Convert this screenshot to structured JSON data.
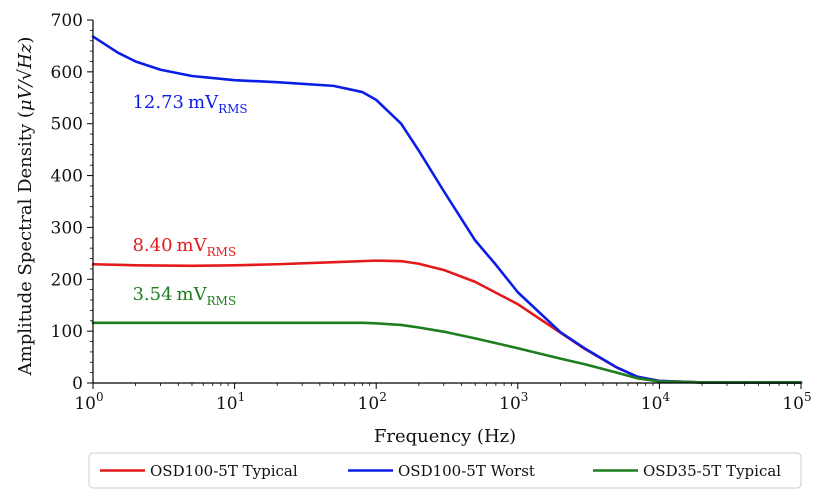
{
  "chart_data": {
    "type": "line",
    "title": "",
    "xlabel": "Frequency (Hz)",
    "ylabel_prefix": "Amplitude Spectral Density (",
    "ylabel_unit": "μV/√Hz",
    "ylabel_suffix": ")",
    "xscale": "log",
    "xlim": [
      1,
      100000
    ],
    "ylim": [
      0,
      700
    ],
    "x_ticks": [
      {
        "value": 1,
        "base": "10",
        "exp": "0"
      },
      {
        "value": 10,
        "base": "10",
        "exp": "1"
      },
      {
        "value": 100,
        "base": "10",
        "exp": "2"
      },
      {
        "value": 1000,
        "base": "10",
        "exp": "3"
      },
      {
        "value": 10000,
        "base": "10",
        "exp": "4"
      },
      {
        "value": 100000,
        "base": "10",
        "exp": "5"
      }
    ],
    "y_ticks": [
      0,
      100,
      200,
      300,
      400,
      500,
      600,
      700
    ],
    "y_tick_labels": [
      "0",
      "100",
      "200",
      "300",
      "400",
      "500",
      "600",
      "700"
    ],
    "series": [
      {
        "name": "OSD100-5T Typical",
        "color": "#e31a1c",
        "x": [
          1,
          2,
          5,
          10,
          20,
          50,
          100,
          150,
          200,
          300,
          500,
          1000,
          2000,
          3000,
          5000,
          7000,
          10000,
          20000,
          100000
        ],
        "values": [
          229,
          227,
          226,
          227,
          229,
          233,
          236,
          235,
          230,
          218,
          195,
          152,
          97,
          65,
          30,
          12,
          4,
          1,
          1
        ]
      },
      {
        "name": "OSD100-5T Worst",
        "color": "#0b1ee8",
        "x": [
          1,
          1.5,
          2,
          3,
          5,
          10,
          20,
          50,
          80,
          100,
          150,
          200,
          300,
          500,
          700,
          1000,
          2000,
          3000,
          5000,
          7000,
          10000,
          20000,
          100000
        ],
        "values": [
          668,
          637,
          620,
          604,
          592,
          584,
          580,
          573,
          561,
          546,
          500,
          448,
          370,
          275,
          228,
          175,
          98,
          66,
          30,
          12,
          4,
          1,
          1
        ]
      },
      {
        "name": "OSD35-5T Typical",
        "color": "#1e7d1e",
        "x": [
          1,
          10,
          50,
          80,
          100,
          150,
          200,
          300,
          500,
          1000,
          2000,
          3000,
          5000,
          7000,
          10000,
          20000,
          100000
        ],
        "values": [
          116,
          116,
          116,
          116,
          115,
          112,
          107,
          99,
          86,
          67,
          47,
          36,
          20,
          9,
          3,
          1,
          1
        ]
      }
    ],
    "annotations": [
      {
        "value": "12.73",
        "unit": "mV",
        "sub": "RMS",
        "color": "#0b1ee8",
        "at_x": 1.9,
        "at_y": 530
      },
      {
        "value": "8.40",
        "unit": "mV",
        "sub": "RMS",
        "color": "#e31a1c",
        "at_x": 1.9,
        "at_y": 255
      },
      {
        "value": "3.54",
        "unit": "mV",
        "sub": "RMS",
        "color": "#1e7d1e",
        "at_x": 1.9,
        "at_y": 160
      }
    ],
    "legend": {
      "placement": "bottom",
      "entries": [
        "OSD100-5T Typical",
        "OSD100-5T Worst",
        "OSD35-5T Typical"
      ]
    }
  }
}
